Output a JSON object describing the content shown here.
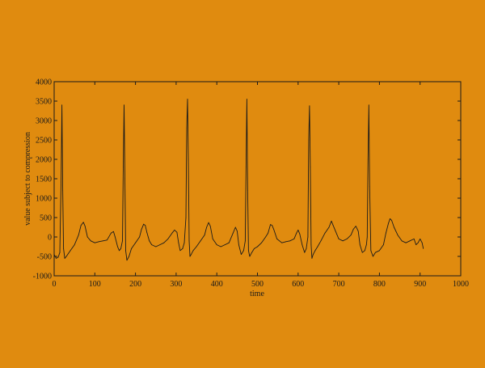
{
  "colors": {
    "background": "#e08b0f",
    "trace": "#1a1a1a",
    "axis": "#1a1a1a"
  },
  "chart_data": {
    "type": "line",
    "title": "",
    "xlabel": "time",
    "ylabel": "value subject to compression",
    "xlim": [
      0,
      1000
    ],
    "ylim": [
      -1000,
      4000
    ],
    "xticks": [
      0,
      100,
      200,
      300,
      400,
      500,
      600,
      700,
      800,
      900,
      1000
    ],
    "yticks": [
      -1000,
      -500,
      0,
      500,
      1000,
      1500,
      2000,
      2500,
      3000,
      3500,
      4000
    ],
    "grid": false,
    "legend": "none",
    "series": [
      {
        "x": [
          0,
          5,
          10,
          14,
          17,
          19,
          21,
          23,
          26,
          30,
          40,
          50,
          60,
          66,
          72,
          76,
          82,
          90,
          100,
          110,
          120,
          130,
          140,
          146,
          150,
          156,
          160,
          164,
          168,
          170,
          172,
          174,
          176,
          179,
          184,
          190,
          200,
          210,
          215,
          220,
          224,
          228,
          234,
          240,
          250,
          260,
          270,
          280,
          290,
          296,
          302,
          306,
          310,
          316,
          320,
          324,
          326,
          328,
          330,
          332,
          334,
          337,
          342,
          350,
          360,
          370,
          375,
          380,
          384,
          390,
          400,
          410,
          420,
          430,
          440,
          446,
          450,
          454,
          460,
          466,
          470,
          472,
          474,
          476,
          478,
          481,
          486,
          492,
          500,
          510,
          520,
          526,
          532,
          536,
          540,
          548,
          560,
          570,
          580,
          590,
          596,
          600,
          604,
          610,
          616,
          620,
          624,
          626,
          628,
          630,
          632,
          634,
          637,
          642,
          648,
          656,
          666,
          676,
          682,
          686,
          692,
          700,
          710,
          720,
          730,
          736,
          742,
          748,
          752,
          758,
          764,
          768,
          770,
          772,
          774,
          776,
          779,
          784,
          790,
          800,
          810,
          816,
          822,
          826,
          830,
          836,
          845,
          855,
          865,
          875,
          885,
          890,
          895,
          900,
          905,
          908
        ],
        "y": [
          -450,
          -550,
          -520,
          -400,
          1500,
          3400,
          1200,
          -300,
          -550,
          -500,
          -350,
          -200,
          50,
          300,
          380,
          280,
          0,
          -100,
          -150,
          -120,
          -100,
          -80,
          100,
          140,
          0,
          -250,
          -350,
          -300,
          -100,
          1800,
          3400,
          1500,
          -350,
          -600,
          -500,
          -300,
          -150,
          0,
          200,
          330,
          300,
          120,
          -100,
          -200,
          -250,
          -200,
          -150,
          -50,
          100,
          180,
          120,
          -150,
          -350,
          -300,
          -150,
          500,
          2800,
          3550,
          2000,
          -100,
          -500,
          -450,
          -350,
          -250,
          -100,
          50,
          250,
          370,
          280,
          -50,
          -200,
          -250,
          -200,
          -150,
          100,
          250,
          150,
          -200,
          -450,
          -350,
          -100,
          1800,
          3550,
          1200,
          -350,
          -500,
          -400,
          -300,
          -250,
          -150,
          0,
          100,
          320,
          300,
          200,
          -50,
          -150,
          -120,
          -100,
          -50,
          100,
          180,
          80,
          -200,
          -400,
          -300,
          0,
          2500,
          3380,
          1800,
          -200,
          -550,
          -450,
          -350,
          -250,
          -100,
          100,
          250,
          410,
          300,
          150,
          -50,
          -100,
          -50,
          50,
          200,
          280,
          150,
          -200,
          -400,
          -350,
          -200,
          0,
          2000,
          3400,
          1300,
          -350,
          -500,
          -400,
          -350,
          -200,
          100,
          350,
          470,
          430,
          250,
          50,
          -100,
          -150,
          -100,
          -50,
          -200,
          -150,
          -50,
          -150,
          -300
        ],
        "color": "#1a1a1a"
      }
    ]
  }
}
